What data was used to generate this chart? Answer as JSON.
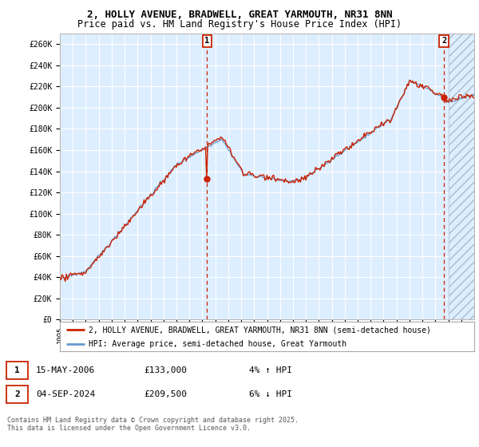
{
  "title_line1": "2, HOLLY AVENUE, BRADWELL, GREAT YARMOUTH, NR31 8NN",
  "title_line2": "Price paid vs. HM Land Registry's House Price Index (HPI)",
  "ylim": [
    0,
    270000
  ],
  "xlim_start": 1995.0,
  "xlim_end": 2027.0,
  "yticks": [
    0,
    20000,
    40000,
    60000,
    80000,
    100000,
    120000,
    140000,
    160000,
    180000,
    200000,
    220000,
    240000,
    260000
  ],
  "ytick_labels": [
    "£0",
    "£20K",
    "£40K",
    "£60K",
    "£80K",
    "£100K",
    "£120K",
    "£140K",
    "£160K",
    "£180K",
    "£200K",
    "£220K",
    "£240K",
    "£260K"
  ],
  "hpi_color": "#6699cc",
  "price_color": "#cc2200",
  "marker1_x": 2006.37,
  "marker1_y": 133000,
  "marker2_x": 2024.67,
  "marker2_y": 209500,
  "marker1_label": "15-MAY-2006",
  "marker2_label": "04-SEP-2024",
  "marker1_price": "£133,000",
  "marker2_price": "£209,500",
  "marker1_hpi": "4% ↑ HPI",
  "marker2_hpi": "6% ↓ HPI",
  "legend_line1": "2, HOLLY AVENUE, BRADWELL, GREAT YARMOUTH, NR31 8NN (semi-detached house)",
  "legend_line2": "HPI: Average price, semi-detached house, Great Yarmouth",
  "footnote": "Contains HM Land Registry data © Crown copyright and database right 2025.\nThis data is licensed under the Open Government Licence v3.0.",
  "bg_plot": "#ddeeff",
  "grid_color": "#ffffff",
  "title_fontsize": 9,
  "subtitle_fontsize": 8.5
}
